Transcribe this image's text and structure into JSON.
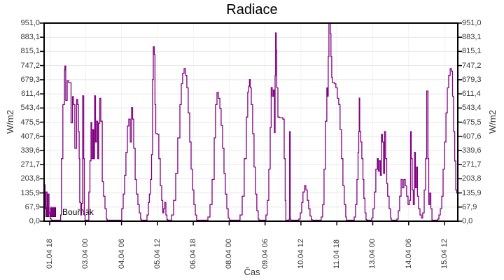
{
  "window": {
    "title": "Radiace"
  },
  "labels": {
    "title": "Radiace",
    "xlabel": "Čas",
    "ylabel_left": "W/m2",
    "ylabel_right": "W/m2",
    "legend_label": "Bouřňák"
  },
  "colors": {
    "series": "#800080",
    "series_border": "#4d004d",
    "grid_h": "#e6e6e6",
    "grid_v": "#f2f2f2",
    "axis": "#000000",
    "tick_text": "#3a3a3a"
  },
  "chart_data": {
    "type": "line",
    "title": "Radiace",
    "xlabel": "Čas",
    "ylabel": "W/m2",
    "legend": [
      {
        "name": "Bouřňák",
        "color": "#800080",
        "position": "bottom-left-inside"
      }
    ],
    "grid": "horizontal-light",
    "ylim": [
      0,
      951
    ],
    "yticks": [
      0,
      67.93,
      135.86,
      203.79,
      271.71,
      339.64,
      407.57,
      475.5,
      543.43,
      611.36,
      679.29,
      747.21,
      815.14,
      883.07,
      951
    ],
    "ytick_labels": [
      "0,0",
      "67,9",
      "135,9",
      "203,8",
      "271,7",
      "339,6",
      "407,6",
      "475,5",
      "543,4",
      "611,4",
      "679,3",
      "747,2",
      "815,1",
      "883,1",
      "951,0"
    ],
    "x_unit": "hours since 01.04 00:00",
    "xlim": [
      13.3,
      359.1
    ],
    "xticks": [
      18,
      48,
      78,
      108,
      138,
      168,
      198,
      228,
      258,
      288,
      318,
      348
    ],
    "xtick_labels": [
      "01.04 18",
      "03.04 00",
      "04.04 06",
      "05.04 12",
      "06.04 18",
      "08.04 00",
      "09.04 06",
      "10.04 12",
      "11.04 18",
      "13.04 00",
      "14.04 06",
      "15.04 12"
    ],
    "series": [
      {
        "name": "Bouřňák",
        "color": "#800080",
        "interpolation": "step-after",
        "points": [
          [
            13.3,
            175
          ],
          [
            14.1,
            60
          ],
          [
            14.9,
            140
          ],
          [
            15.8,
            45
          ],
          [
            16.6,
            130
          ],
          [
            17.4,
            40
          ],
          [
            18.4,
            12
          ],
          [
            19.2,
            5
          ],
          [
            26.2,
            5
          ],
          [
            27.1,
            30
          ],
          [
            27.8,
            300
          ],
          [
            29,
            560
          ],
          [
            30.3,
            726
          ],
          [
            30.7,
            745
          ],
          [
            31.4,
            580
          ],
          [
            32.6,
            675
          ],
          [
            33.8,
            665
          ],
          [
            35.8,
            472
          ],
          [
            37,
            598
          ],
          [
            37.9,
            560
          ],
          [
            39,
            350
          ],
          [
            40.5,
            585
          ],
          [
            41.4,
            560
          ],
          [
            42,
            430
          ],
          [
            42.6,
            300
          ],
          [
            43.1,
            90
          ],
          [
            44,
            30
          ],
          [
            44.6,
            85
          ],
          [
            45.5,
            602
          ],
          [
            46.4,
            300
          ],
          [
            46.9,
            30
          ],
          [
            47.5,
            5
          ],
          [
            50.2,
            5
          ],
          [
            50.7,
            140
          ],
          [
            51.6,
            290
          ],
          [
            52.5,
            474
          ],
          [
            53.1,
            300
          ],
          [
            54,
            440
          ],
          [
            54.8,
            300
          ],
          [
            55.4,
            602
          ],
          [
            56.3,
            380
          ],
          [
            57.2,
            480
          ],
          [
            58.1,
            300
          ],
          [
            58.9,
            470
          ],
          [
            59.8,
            590
          ],
          [
            60.7,
            480
          ],
          [
            61.9,
            190
          ],
          [
            63,
            120
          ],
          [
            64.2,
            60
          ],
          [
            65.4,
            10
          ],
          [
            66,
            5
          ],
          [
            77.1,
            5
          ],
          [
            78.2,
            60
          ],
          [
            79.4,
            130
          ],
          [
            80.6,
            220
          ],
          [
            81.7,
            330
          ],
          [
            82.9,
            457
          ],
          [
            84.1,
            490
          ],
          [
            85.3,
            380
          ],
          [
            86.4,
            545
          ],
          [
            87.3,
            490
          ],
          [
            88.2,
            350
          ],
          [
            89.4,
            200
          ],
          [
            90.5,
            130
          ],
          [
            91.7,
            80
          ],
          [
            92.9,
            40
          ],
          [
            94,
            10
          ],
          [
            94.6,
            5
          ],
          [
            98.7,
            5
          ],
          [
            99.3,
            30
          ],
          [
            100.5,
            90
          ],
          [
            101.3,
            130
          ],
          [
            102.2,
            200
          ],
          [
            103.1,
            320
          ],
          [
            104,
            680
          ],
          [
            104.6,
            837
          ],
          [
            105.4,
            800
          ],
          [
            106,
            560
          ],
          [
            106.6,
            420
          ],
          [
            108.1,
            417
          ],
          [
            109.2,
            300
          ],
          [
            110.4,
            170
          ],
          [
            111.6,
            100
          ],
          [
            112.5,
            40
          ],
          [
            113.3,
            60
          ],
          [
            114.2,
            90
          ],
          [
            115.1,
            30
          ],
          [
            116,
            8
          ],
          [
            116.6,
            5
          ],
          [
            118.6,
            5
          ],
          [
            119.8,
            30
          ],
          [
            121.5,
            100
          ],
          [
            123.3,
            230
          ],
          [
            125,
            400
          ],
          [
            126.8,
            560
          ],
          [
            128,
            660
          ],
          [
            129.1,
            710
          ],
          [
            130.3,
            733
          ],
          [
            131.5,
            700
          ],
          [
            132.6,
            640
          ],
          [
            133.8,
            520
          ],
          [
            135,
            380
          ],
          [
            136.2,
            250
          ],
          [
            137.3,
            150
          ],
          [
            138.5,
            80
          ],
          [
            139.7,
            30
          ],
          [
            140.8,
            5
          ],
          [
            149,
            5
          ],
          [
            150.2,
            20
          ],
          [
            152,
            80
          ],
          [
            153.7,
            200
          ],
          [
            155.5,
            400
          ],
          [
            156.6,
            560
          ],
          [
            157.8,
            618
          ],
          [
            159,
            590
          ],
          [
            160.2,
            540
          ],
          [
            161.3,
            460
          ],
          [
            162.5,
            350
          ],
          [
            163.7,
            230
          ],
          [
            164.8,
            130
          ],
          [
            166,
            60
          ],
          [
            167.2,
            15
          ],
          [
            168.3,
            5
          ],
          [
            175.9,
            5
          ],
          [
            177.1,
            30
          ],
          [
            178.9,
            120
          ],
          [
            180.6,
            300
          ],
          [
            182.4,
            500
          ],
          [
            183.5,
            620
          ],
          [
            184.4,
            648
          ],
          [
            185,
            680
          ],
          [
            185.6,
            640
          ],
          [
            186.5,
            560
          ],
          [
            187.6,
            420
          ],
          [
            188.8,
            260
          ],
          [
            190,
            130
          ],
          [
            191.1,
            50
          ],
          [
            192.3,
            10
          ],
          [
            192.9,
            5
          ],
          [
            197.6,
            5
          ],
          [
            198.7,
            30
          ],
          [
            199.9,
            100
          ],
          [
            201.1,
            250
          ],
          [
            202.3,
            450
          ],
          [
            203.1,
            642
          ],
          [
            204,
            600
          ],
          [
            204.9,
            630
          ],
          [
            205.8,
            425
          ],
          [
            206.4,
            700
          ],
          [
            206.8,
            904
          ],
          [
            207.3,
            820
          ],
          [
            207.8,
            640
          ],
          [
            208.7,
            500
          ],
          [
            209.9,
            497
          ],
          [
            212.8,
            490
          ],
          [
            214,
            300
          ],
          [
            214.8,
            100
          ],
          [
            215.4,
            5
          ],
          [
            217.5,
            5
          ],
          [
            218.1,
            10
          ],
          [
            218.5,
            430
          ],
          [
            219,
            10
          ],
          [
            219.5,
            5
          ],
          [
            225.1,
            5
          ],
          [
            226.2,
            10
          ],
          [
            227.4,
            40
          ],
          [
            228.6,
            90
          ],
          [
            229.7,
            140
          ],
          [
            230.9,
            171
          ],
          [
            232.1,
            150
          ],
          [
            233.3,
            100
          ],
          [
            234.4,
            60
          ],
          [
            235.6,
            25
          ],
          [
            236.7,
            8
          ],
          [
            237.3,
            5
          ],
          [
            244.4,
            5
          ],
          [
            244.9,
            20
          ],
          [
            246.1,
            80
          ],
          [
            247.3,
            250
          ],
          [
            248.5,
            480
          ],
          [
            249.6,
            640
          ],
          [
            250.2,
            600
          ],
          [
            250.8,
            790
          ],
          [
            251.4,
            951
          ],
          [
            252,
            951
          ],
          [
            252.6,
            900
          ],
          [
            253.1,
            790
          ],
          [
            253.7,
            690
          ],
          [
            254.3,
            665
          ],
          [
            256.1,
            660
          ],
          [
            257.2,
            640
          ],
          [
            258.4,
            590
          ],
          [
            259.6,
            560
          ],
          [
            260.7,
            440
          ],
          [
            261.9,
            300
          ],
          [
            263.1,
            170
          ],
          [
            264.2,
            80
          ],
          [
            265.4,
            20
          ],
          [
            266,
            5
          ],
          [
            271.9,
            5
          ],
          [
            272.5,
            20
          ],
          [
            273.6,
            80
          ],
          [
            274.8,
            200
          ],
          [
            275.7,
            330
          ],
          [
            276.3,
            430
          ],
          [
            276.7,
            591
          ],
          [
            277.1,
            430
          ],
          [
            278,
            380
          ],
          [
            278.9,
            300
          ],
          [
            279.8,
            200
          ],
          [
            280.6,
            110
          ],
          [
            281.5,
            40
          ],
          [
            282.4,
            8
          ],
          [
            283,
            5
          ],
          [
            285.9,
            5
          ],
          [
            287.1,
            15
          ],
          [
            288.2,
            60
          ],
          [
            289.4,
            140
          ],
          [
            290.6,
            250
          ],
          [
            291.8,
            300
          ],
          [
            292.6,
            240
          ],
          [
            293.5,
            290
          ],
          [
            294.4,
            220
          ],
          [
            295.3,
            417
          ],
          [
            296.1,
            380
          ],
          [
            297,
            230
          ],
          [
            297.9,
            430
          ],
          [
            298.8,
            300
          ],
          [
            299.7,
            180
          ],
          [
            300.5,
            120
          ],
          [
            301.7,
            60
          ],
          [
            302.9,
            15
          ],
          [
            303.5,
            5
          ],
          [
            307,
            5
          ],
          [
            308.2,
            10
          ],
          [
            309.3,
            50
          ],
          [
            310.5,
            120
          ],
          [
            311.7,
            200
          ],
          [
            312.8,
            160
          ],
          [
            314,
            200
          ],
          [
            315.2,
            170
          ],
          [
            316.3,
            120
          ],
          [
            317.5,
            80
          ],
          [
            318.7,
            100
          ],
          [
            319.6,
            430
          ],
          [
            320.2,
            300
          ],
          [
            321,
            150
          ],
          [
            321.9,
            80
          ],
          [
            322.8,
            330
          ],
          [
            323.7,
            160
          ],
          [
            324.6,
            260
          ],
          [
            325.4,
            120
          ],
          [
            326.3,
            60
          ],
          [
            327.5,
            30
          ],
          [
            328.7,
            15
          ],
          [
            329.8,
            40
          ],
          [
            331,
            150
          ],
          [
            332.2,
            300
          ],
          [
            333.1,
            625
          ],
          [
            333.7,
            625
          ],
          [
            334.2,
            300
          ],
          [
            334.8,
            80
          ],
          [
            335.7,
            135
          ],
          [
            336.6,
            60
          ],
          [
            337.5,
            5
          ],
          [
            341,
            5
          ],
          [
            342.2,
            10
          ],
          [
            343.3,
            30
          ],
          [
            344.5,
            60
          ],
          [
            345.7,
            120
          ],
          [
            346.8,
            250
          ],
          [
            348,
            380
          ],
          [
            349.2,
            520
          ],
          [
            350.3,
            640
          ],
          [
            351.5,
            700
          ],
          [
            352.7,
            733
          ],
          [
            353.8,
            720
          ],
          [
            354.7,
            600
          ],
          [
            355.6,
            430
          ],
          [
            356.5,
            289
          ],
          [
            357.4,
            150
          ],
          [
            358.2,
            135
          ],
          [
            359.1,
            40
          ]
        ]
      }
    ]
  }
}
